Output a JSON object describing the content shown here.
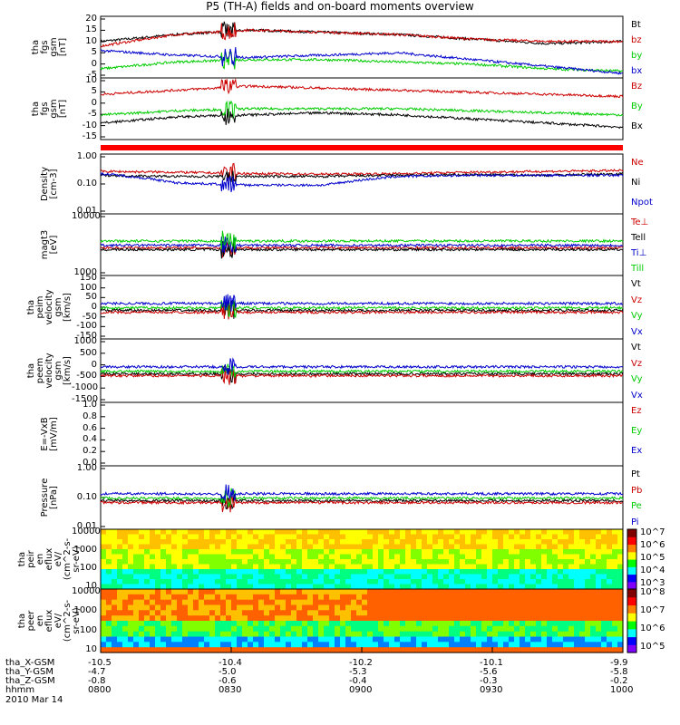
{
  "title": "P5 (TH-A) fields and on-board moments overview",
  "date": "2010 Mar 14",
  "footer": {
    "rows": [
      {
        "label": "tha_X-GSM",
        "values": [
          "-10.5",
          "-10.4",
          "-10.2",
          "-10.1",
          "-9.9"
        ]
      },
      {
        "label": "tha_Y-GSM",
        "values": [
          "-4.7",
          "-5.0",
          "-5.3",
          "-5.6",
          "-5.8"
        ]
      },
      {
        "label": "tha_Z-GSM",
        "values": [
          "-0.8",
          "-0.6",
          "-0.4",
          "-0.3",
          "-0.2"
        ]
      },
      {
        "label": "hhmm",
        "values": [
          "0800",
          "0830",
          "0900",
          "0930",
          "1000"
        ]
      }
    ]
  },
  "chart_data": [
    {
      "type": "line",
      "ylabel": "tha\nfgs\ngsm\n[nT]",
      "yticks": [
        "20",
        "15",
        "10",
        "5",
        "0",
        "-5"
      ],
      "ylim": [
        -5,
        22
      ],
      "series": [
        {
          "name": "Bt",
          "color": "#000000",
          "values": [
            11,
            14,
            16,
            15,
            14,
            12,
            10,
            11
          ]
        },
        {
          "name": "bz",
          "color": "#cc0000",
          "values": [
            9,
            14,
            16,
            15,
            14,
            12,
            11,
            11
          ]
        },
        {
          "name": "by",
          "color": "#00cc00",
          "values": [
            -1,
            2,
            3,
            3,
            2,
            1,
            -1,
            -2
          ]
        },
        {
          "name": "bx",
          "color": "#0000cc",
          "values": [
            7,
            5,
            4,
            5,
            6,
            3,
            0,
            -3
          ]
        }
      ]
    },
    {
      "type": "line",
      "ylabel": "tha\nfgs\ngsm\n[nT]",
      "yticks": [
        "10",
        "5",
        "0",
        "-5",
        "-10",
        "-15"
      ],
      "ylim": [
        -18,
        12
      ],
      "series": [
        {
          "name": "Bz",
          "color": "#cc0000",
          "values": [
            4,
            6,
            8,
            7,
            6,
            5,
            4,
            3
          ]
        },
        {
          "name": "By",
          "color": "#00cc00",
          "values": [
            -6,
            -4,
            -3,
            -3,
            -3,
            -4,
            -5,
            -6
          ]
        },
        {
          "name": "Bx",
          "color": "#000000",
          "values": [
            -10,
            -7,
            -6,
            -5,
            -6,
            -8,
            -10,
            -12
          ]
        }
      ]
    },
    {
      "type": "line",
      "ylabel": "Density\n[cm-3]",
      "yticks": [
        "1.00",
        "0.10",
        "0.01"
      ],
      "ylim": [
        0.01,
        1.2
      ],
      "series": [
        {
          "name": "Ne",
          "color": "#cc0000",
          "values": [
            0.3,
            0.28,
            0.25,
            0.24,
            0.25,
            0.28,
            0.3,
            0.32
          ]
        },
        {
          "name": "Ni",
          "color": "#000000",
          "values": [
            0.22,
            0.2,
            0.2,
            0.2,
            0.22,
            0.23,
            0.22,
            0.25
          ]
        },
        {
          "name": "Npot",
          "color": "#0000cc",
          "values": [
            0.25,
            0.12,
            0.1,
            0.1,
            0.2,
            0.22,
            0.22,
            0.22
          ]
        }
      ]
    },
    {
      "type": "line",
      "ylabel": "magt3\n[eV]",
      "yticks": [
        "10000",
        "1000"
      ],
      "ylim": [
        1000,
        12000
      ],
      "series": [
        {
          "name": "Te⊥",
          "color": "#cc0000"
        },
        {
          "name": "Tell",
          "color": "#000000"
        },
        {
          "name": "Ti⊥",
          "color": "#0000cc"
        },
        {
          "name": "Till",
          "color": "#00cc00"
        }
      ]
    },
    {
      "type": "line",
      "ylabel": "tha\npeim\nvelocity\ngsm\n[km/s]",
      "yticks": [
        "150",
        "100",
        "50",
        "0",
        "-50",
        "-100",
        "-150"
      ],
      "ylim": [
        -160,
        170
      ],
      "series": [
        {
          "name": "Vt",
          "color": "#000000"
        },
        {
          "name": "Vz",
          "color": "#cc0000"
        },
        {
          "name": "Vy",
          "color": "#00cc00"
        },
        {
          "name": "Vx",
          "color": "#0000cc"
        }
      ]
    },
    {
      "type": "line",
      "ylabel": "tha\npeem\nvelocity\ngsm\n[km/s]",
      "yticks": [
        "1000",
        "500",
        "0",
        "-500",
        "-1000",
        "-1500"
      ],
      "ylim": [
        -1600,
        1100
      ],
      "series": [
        {
          "name": "Vt",
          "color": "#000000"
        },
        {
          "name": "Vz",
          "color": "#cc0000"
        },
        {
          "name": "Vy",
          "color": "#00cc00"
        },
        {
          "name": "Vx",
          "color": "#0000cc"
        }
      ]
    },
    {
      "type": "line",
      "ylabel": "E=-VxB\n[mV/m]",
      "yticks": [
        "1.0",
        "0.8",
        "0.6",
        "0.4",
        "0.2",
        "0.0"
      ],
      "ylim": [
        0,
        1
      ],
      "series": [
        {
          "name": "Ez",
          "color": "#cc0000"
        },
        {
          "name": "Ey",
          "color": "#00cc00"
        },
        {
          "name": "Ex",
          "color": "#0000cc"
        }
      ]
    },
    {
      "type": "line",
      "ylabel": "Pressure\n[nPa]",
      "yticks": [
        "1.00",
        "0.10",
        "0.01"
      ],
      "ylim": [
        0.01,
        1.2
      ],
      "series": [
        {
          "name": "Pt",
          "color": "#000000"
        },
        {
          "name": "Pb",
          "color": "#cc0000"
        },
        {
          "name": "Pe",
          "color": "#00cc00"
        },
        {
          "name": "Pi",
          "color": "#0000cc"
        }
      ]
    },
    {
      "type": "heatmap",
      "ylabel": "tha\npeir\nen\neflux\neV/\n(cm^2-s-\nsr-eV)",
      "yticks": [
        "10000",
        "1000",
        "100",
        "10"
      ],
      "colorbar": [
        "10^7",
        "10^6",
        "10^5",
        "10^4",
        "10^3"
      ]
    },
    {
      "type": "heatmap",
      "ylabel": "tha\npeer\nen\neflux\neV/\n(cm^2-s-\nsr-eV)",
      "yticks": [
        "10000",
        "1000",
        "100",
        "10"
      ],
      "colorbar": [
        "10^8",
        "10^7",
        "10^6",
        "10^5"
      ]
    }
  ]
}
